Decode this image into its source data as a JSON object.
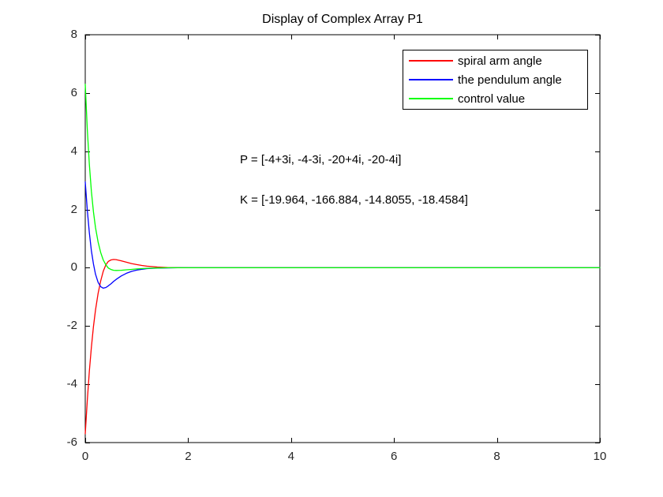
{
  "figure": {
    "title": "Display of Complex Array P1",
    "background_color": "#ffffff",
    "axis_color": "#000000",
    "tick_label_color": "#262626"
  },
  "annotations": {
    "p_text": "P = [-4+3i, -4-3i, -20+4i, -20-4i]",
    "k_text": "K = [-19.964, -166.884, -14.8055, -18.4584]"
  },
  "legend": {
    "position": "upper-right-inside",
    "items": [
      {
        "label": "spiral arm angle",
        "color": "#ff0000"
      },
      {
        "label": "the pendulum angle",
        "color": "#0000ff"
      },
      {
        "label": "control value",
        "color": "#00ff00"
      }
    ]
  },
  "chart_data": {
    "type": "line",
    "title": "Display of Complex Array P1",
    "xlabel": "",
    "ylabel": "",
    "xlim": [
      0,
      10
    ],
    "ylim": [
      -6,
      8
    ],
    "xticks": [
      0,
      2,
      4,
      6,
      8,
      10
    ],
    "yticks": [
      -6,
      -4,
      -2,
      0,
      2,
      4,
      6,
      8
    ],
    "grid": false,
    "legend_position": "upper right",
    "x": [
      0,
      0.04,
      0.08,
      0.12,
      0.16,
      0.2,
      0.25,
      0.3,
      0.35,
      0.4,
      0.45,
      0.5,
      0.55,
      0.6,
      0.7,
      0.8,
      0.9,
      1.0,
      1.1,
      1.2,
      1.4,
      1.6,
      1.8,
      2.0,
      2.5,
      3,
      4,
      5,
      6,
      7,
      8,
      9,
      10
    ],
    "series": [
      {
        "name": "spiral arm angle",
        "color": "#ff0000",
        "values": [
          -5.7,
          -4.55,
          -3.55,
          -2.72,
          -2.02,
          -1.45,
          -0.88,
          -0.45,
          -0.12,
          0.1,
          0.22,
          0.27,
          0.285,
          0.28,
          0.24,
          0.19,
          0.145,
          0.11,
          0.08,
          0.055,
          0.025,
          0.01,
          0.004,
          0,
          0,
          0,
          0,
          0,
          0,
          0,
          0,
          0,
          0
        ]
      },
      {
        "name": "the pendulum angle",
        "color": "#0000ff",
        "values": [
          2.95,
          1.98,
          1.2,
          0.58,
          0.13,
          -0.22,
          -0.5,
          -0.65,
          -0.7,
          -0.68,
          -0.62,
          -0.55,
          -0.47,
          -0.4,
          -0.28,
          -0.19,
          -0.125,
          -0.08,
          -0.05,
          -0.03,
          -0.012,
          -0.005,
          0,
          0,
          0,
          0,
          0,
          0,
          0,
          0,
          0,
          0,
          0
        ]
      },
      {
        "name": "control value",
        "color": "#00ff00",
        "values": [
          6.3,
          4.75,
          3.55,
          2.62,
          1.92,
          1.38,
          0.88,
          0.52,
          0.27,
          0.1,
          -0.01,
          -0.06,
          -0.085,
          -0.09,
          -0.085,
          -0.07,
          -0.055,
          -0.04,
          -0.028,
          -0.018,
          -0.007,
          0,
          0,
          0,
          0,
          0,
          0,
          0,
          0,
          0,
          0,
          0,
          0
        ]
      }
    ]
  }
}
